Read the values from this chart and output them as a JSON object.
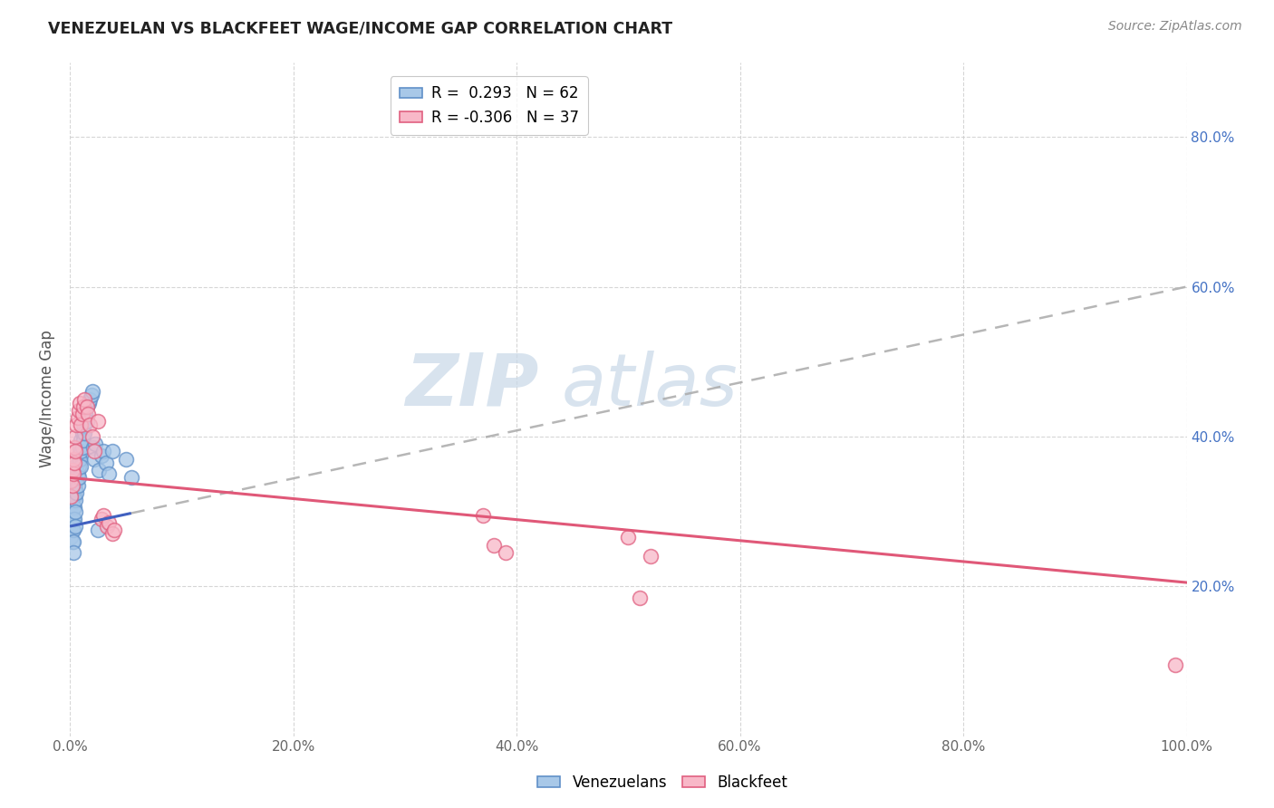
{
  "title": "VENEZUELAN VS BLACKFEET WAGE/INCOME GAP CORRELATION CHART",
  "source": "Source: ZipAtlas.com",
  "ylabel_label": "Wage/Income Gap",
  "legend_blue_R": "0.293",
  "legend_blue_N": "62",
  "legend_pink_R": "-0.306",
  "legend_pink_N": "37",
  "blue_scatter_color": "#A8C8E8",
  "blue_edge_color": "#6090C8",
  "pink_scatter_color": "#F8B8C8",
  "pink_edge_color": "#E06080",
  "blue_line_color": "#4060C0",
  "pink_line_color": "#E05878",
  "dash_line_color": "#AAAAAA",
  "background_color": "#FFFFFF",
  "grid_color": "#CCCCCC",
  "watermark_text": "ZIPatlas",
  "watermark_color": "#C8D8E8",
  "xlim": [
    0.0,
    1.0
  ],
  "ylim": [
    0.0,
    0.9
  ],
  "xticks": [
    0.0,
    0.2,
    0.4,
    0.6,
    0.8,
    1.0
  ],
  "yticks": [
    0.2,
    0.4,
    0.6,
    0.8
  ],
  "xtick_labels": [
    "0.0%",
    "20.0%",
    "40.0%",
    "60.0%",
    "80.0%",
    "100.0%"
  ],
  "ytick_labels": [
    "20.0%",
    "40.0%",
    "60.0%",
    "80.0%"
  ],
  "blue_line_x0": 0.0,
  "blue_line_y0": 0.28,
  "blue_line_x1": 1.0,
  "blue_line_y1": 0.6,
  "pink_line_x0": 0.0,
  "pink_line_y0": 0.345,
  "pink_line_x1": 1.0,
  "pink_line_y1": 0.205,
  "dash_line_x0": 0.055,
  "dash_line_x1": 1.0,
  "venezuelans_x": [
    0.001,
    0.001,
    0.001,
    0.002,
    0.002,
    0.002,
    0.002,
    0.003,
    0.003,
    0.003,
    0.003,
    0.003,
    0.003,
    0.004,
    0.004,
    0.004,
    0.004,
    0.005,
    0.005,
    0.005,
    0.005,
    0.005,
    0.006,
    0.006,
    0.006,
    0.007,
    0.007,
    0.007,
    0.008,
    0.008,
    0.008,
    0.009,
    0.009,
    0.01,
    0.01,
    0.01,
    0.011,
    0.011,
    0.012,
    0.012,
    0.013,
    0.013,
    0.014,
    0.015,
    0.015,
    0.016,
    0.017,
    0.018,
    0.019,
    0.02,
    0.021,
    0.022,
    0.023,
    0.025,
    0.026,
    0.028,
    0.03,
    0.032,
    0.035,
    0.038,
    0.05,
    0.055
  ],
  "venezuelans_y": [
    0.295,
    0.28,
    0.265,
    0.31,
    0.295,
    0.275,
    0.26,
    0.32,
    0.305,
    0.29,
    0.275,
    0.26,
    0.245,
    0.335,
    0.32,
    0.305,
    0.29,
    0.345,
    0.33,
    0.315,
    0.3,
    0.28,
    0.355,
    0.34,
    0.325,
    0.365,
    0.35,
    0.335,
    0.375,
    0.36,
    0.345,
    0.385,
    0.37,
    0.395,
    0.38,
    0.36,
    0.405,
    0.385,
    0.415,
    0.395,
    0.425,
    0.405,
    0.43,
    0.44,
    0.42,
    0.445,
    0.445,
    0.45,
    0.455,
    0.46,
    0.385,
    0.37,
    0.39,
    0.275,
    0.355,
    0.375,
    0.38,
    0.365,
    0.35,
    0.38,
    0.37,
    0.345
  ],
  "blackfeet_x": [
    0.001,
    0.001,
    0.002,
    0.002,
    0.003,
    0.003,
    0.004,
    0.004,
    0.005,
    0.005,
    0.006,
    0.007,
    0.008,
    0.009,
    0.01,
    0.011,
    0.012,
    0.013,
    0.015,
    0.016,
    0.018,
    0.02,
    0.022,
    0.025,
    0.028,
    0.03,
    0.033,
    0.035,
    0.038,
    0.04,
    0.37,
    0.38,
    0.39,
    0.5,
    0.51,
    0.52,
    0.99
  ],
  "blackfeet_y": [
    0.34,
    0.32,
    0.355,
    0.335,
    0.37,
    0.35,
    0.385,
    0.365,
    0.4,
    0.38,
    0.415,
    0.425,
    0.435,
    0.445,
    0.415,
    0.43,
    0.44,
    0.45,
    0.44,
    0.43,
    0.415,
    0.4,
    0.38,
    0.42,
    0.29,
    0.295,
    0.28,
    0.285,
    0.27,
    0.275,
    0.295,
    0.255,
    0.245,
    0.265,
    0.185,
    0.24,
    0.095
  ]
}
